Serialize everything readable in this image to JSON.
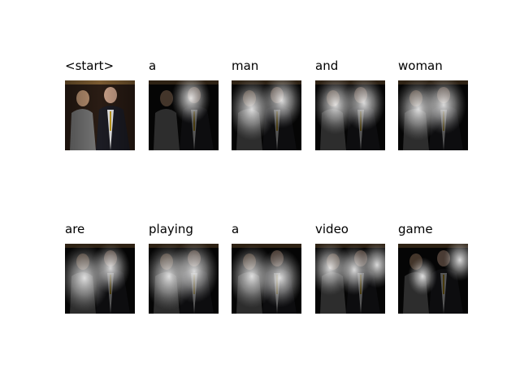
{
  "words": [
    "<start>",
    "a",
    "man",
    "and",
    "woman",
    "are",
    "playing",
    "a",
    "video",
    "game"
  ]
}
